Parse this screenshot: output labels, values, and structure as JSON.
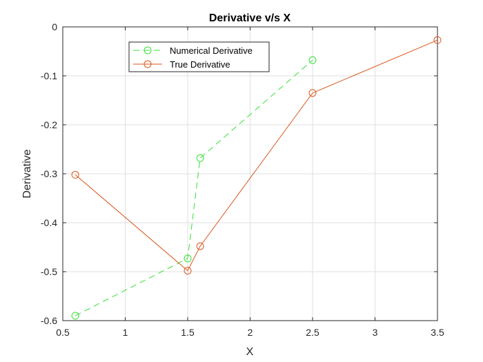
{
  "chart_data": {
    "type": "line",
    "title": "Derivative v/s X",
    "xlabel": "X",
    "ylabel": "Derivative",
    "xlim": [
      0.5,
      3.5
    ],
    "ylim": [
      -0.6,
      0
    ],
    "xticks": [
      "0.5",
      "1",
      "1.5",
      "2",
      "2.5",
      "3",
      "3.5"
    ],
    "yticks": [
      "0",
      "-0.1",
      "-0.2",
      "-0.3",
      "-0.4",
      "-0.5",
      "-0.6"
    ],
    "grid": true,
    "legend_position": "top-left",
    "series": [
      {
        "name": "Numerical Derivative",
        "color": "#33e033",
        "line_style": "dashed",
        "marker": "circle",
        "x": [
          0.6,
          1.5,
          1.6,
          2.5
        ],
        "y": [
          -0.59,
          -0.473,
          -0.268,
          -0.068
        ]
      },
      {
        "name": "True Derivative",
        "color": "#d95319",
        "line_style": "solid",
        "marker": "circle",
        "x": [
          0.6,
          1.5,
          1.6,
          2.5,
          3.5
        ],
        "y": [
          -0.302,
          -0.498,
          -0.448,
          -0.135,
          -0.027
        ]
      }
    ]
  }
}
